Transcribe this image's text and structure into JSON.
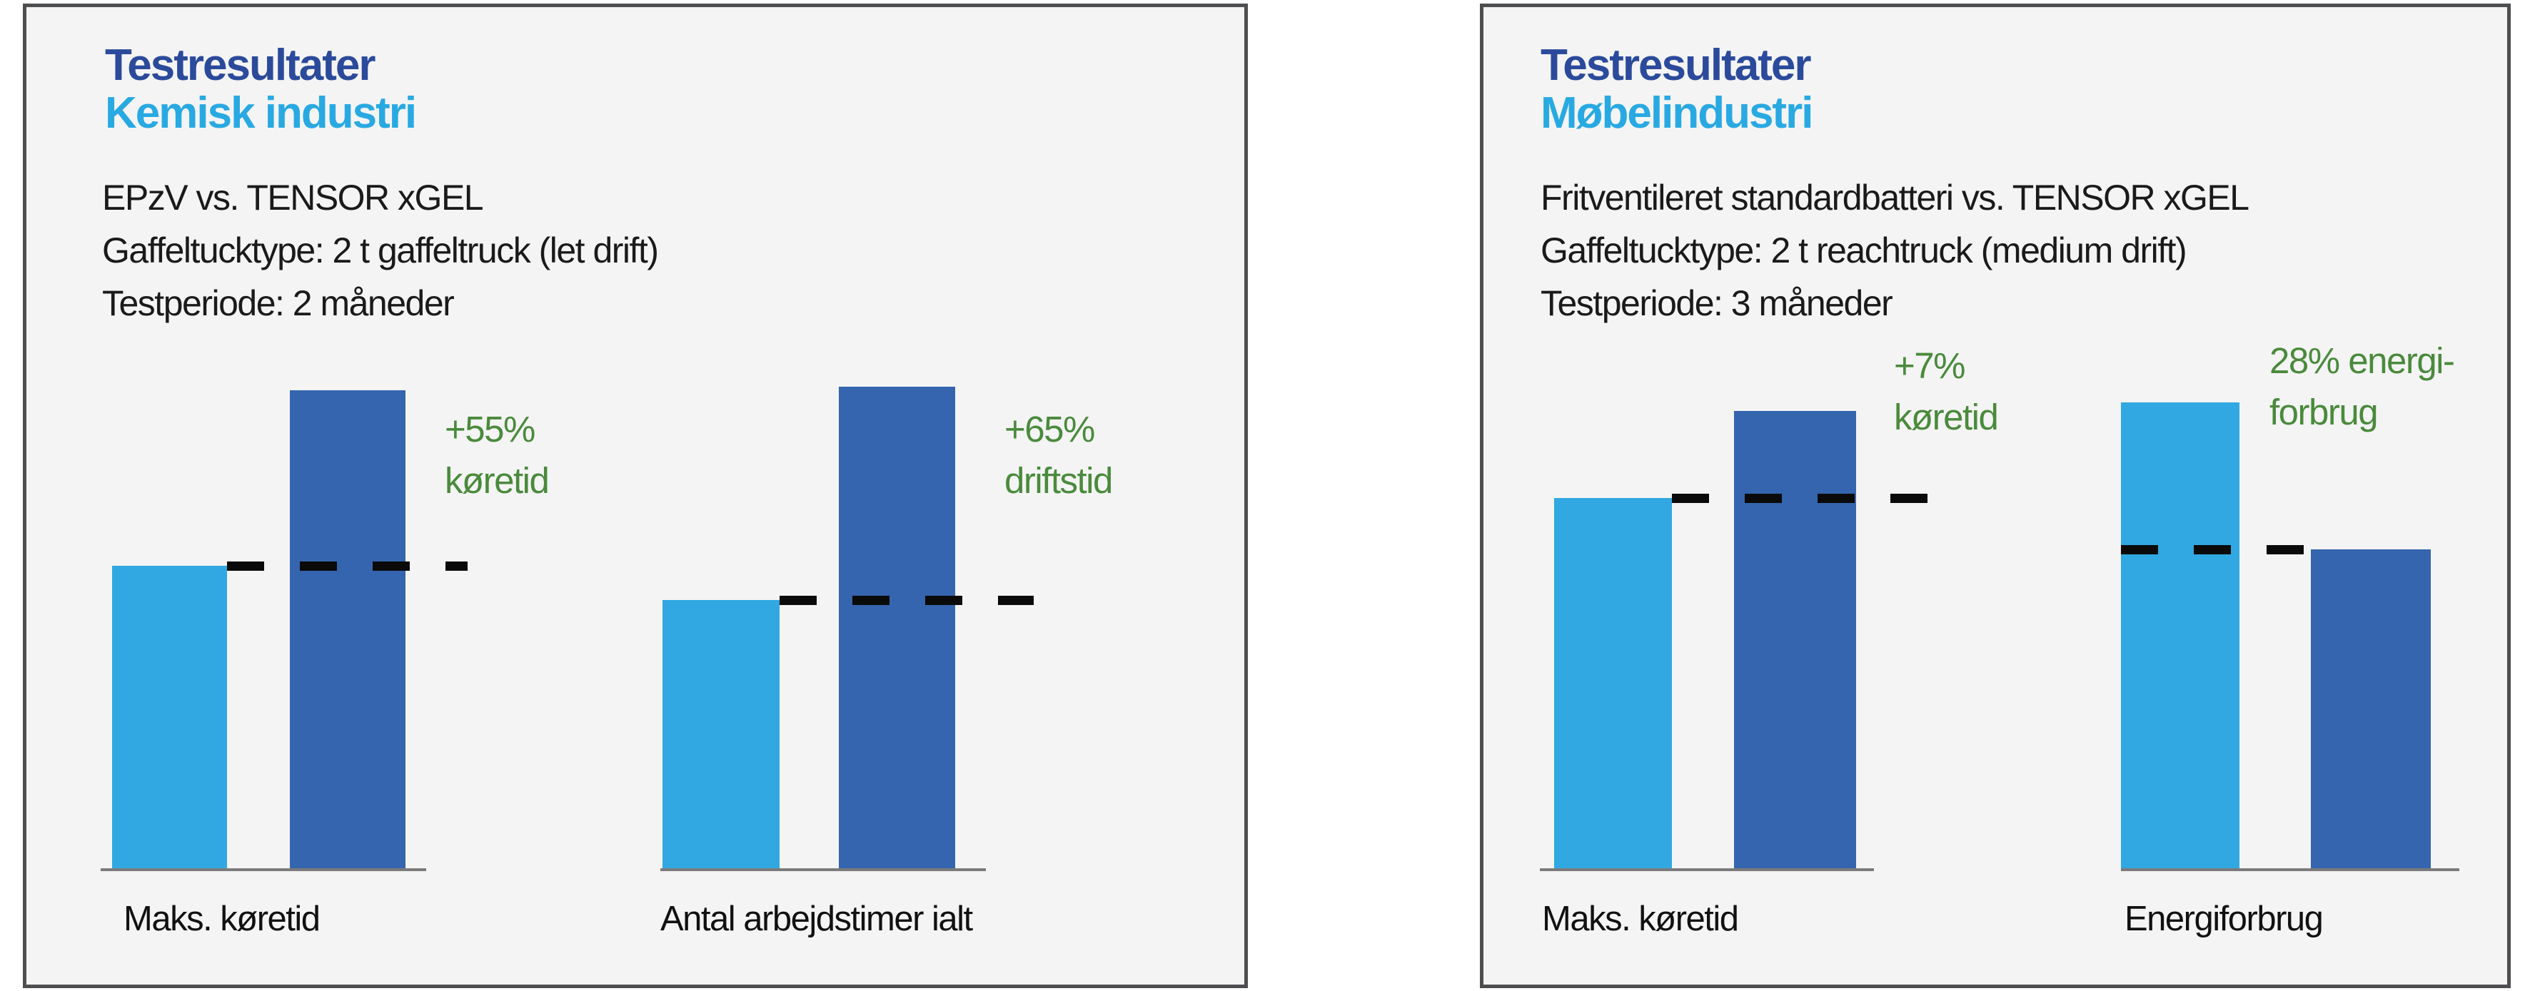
{
  "colors": {
    "page_bg": "#FFFFFF",
    "panel_bg": "#F4F4F4",
    "panel_border": "#4D4E50",
    "title_blue": "#2B4A9B",
    "subtitle_blue": "#29A9E2",
    "body_text": "#1A1A1A",
    "bar_light_blue": "#31A8E1",
    "bar_dark_blue": "#3565AE",
    "annotation_green": "#4A8A3C",
    "baseline_gray": "#7B7B7B",
    "dash_black": "#0A0A0A"
  },
  "panels": [
    {
      "id": "left",
      "name": "kemisk-industri",
      "title": "Testresultater",
      "subtitle": "Kemisk industri",
      "description_lines": [
        "EPzV vs. TENSOR xGEL",
        "Gaffeltucktype: 2 t gaffeltruck (let drift)",
        "Testperiode: 2 måneder"
      ]
    },
    {
      "id": "right",
      "name": "moebelindustri",
      "title": "Testresultater",
      "subtitle": "Møbelindustri",
      "description_lines": [
        "Fritventileret standardbatteri vs. TENSOR xGEL",
        "Gaffeltucktype: 2 t reachtruck (medium drift)",
        "Testperiode: 3 måneder"
      ]
    }
  ],
  "chart_data": [
    {
      "type": "bar",
      "panel": "left",
      "title": "Testresultater – Kemisk industri",
      "series": [
        {
          "name": "EPzV",
          "color_role": "light"
        },
        {
          "name": "TENSOR xGEL",
          "color_role": "dark"
        }
      ],
      "value_unit": "relative bar height in px (no numeric axis shown)",
      "grid": false,
      "legend": "none",
      "baseline_y": 1207,
      "label_top": 1250,
      "groups": [
        {
          "category": "Maks. køretid",
          "values": [
            424,
            670
          ],
          "delta_lines": [
            "+55%",
            "køretid"
          ],
          "dash_series": 0,
          "layout": {
            "bars_left": [
              120,
              369
            ],
            "bars_width": [
              161,
              162
            ],
            "dash_left": 281,
            "dash_width": 337,
            "baseline_left": 104,
            "baseline_width": 456,
            "label_left": 136,
            "annotation_left": 586,
            "annotation_top": 556
          }
        },
        {
          "category": "Antal arbejdstimer ialt",
          "values": [
            376,
            675
          ],
          "delta_lines": [
            "+65%",
            "driftstid"
          ],
          "dash_series": 0,
          "layout": {
            "bars_left": [
              891,
              1138
            ],
            "bars_width": [
              164,
              163
            ],
            "dash_left": 1055,
            "dash_width": 356,
            "baseline_left": 888,
            "baseline_width": 456,
            "label_left": 888,
            "annotation_left": 1370,
            "annotation_top": 556
          }
        }
      ]
    },
    {
      "type": "bar",
      "panel": "right",
      "title": "Testresultater – Møbelindustri",
      "series": [
        {
          "name": "Fritventileret standardbatteri",
          "color_role": "light"
        },
        {
          "name": "TENSOR xGEL",
          "color_role": "dark"
        }
      ],
      "value_unit": "relative bar height in px (no numeric axis shown)",
      "grid": false,
      "legend": "none",
      "baseline_y": 1207,
      "label_top": 1250,
      "groups": [
        {
          "category": "Maks. køretid",
          "values": [
            519,
            641
          ],
          "delta_lines": [
            "+7%",
            "køretid"
          ],
          "dash_series": 0,
          "layout": {
            "bars_left": [
              99,
              351
            ],
            "bars_width": [
              165,
              171
            ],
            "dash_left": 264,
            "dash_width": 360,
            "baseline_left": 79,
            "baseline_width": 468,
            "label_left": 82,
            "annotation_left": 575,
            "annotation_top": 467
          }
        },
        {
          "category": "Energiforbrug",
          "values": [
            653,
            447
          ],
          "delta_lines": [
            "28% energi-",
            "forbrug"
          ],
          "dash_series": 1,
          "layout": {
            "bars_left": [
              893,
              1159
            ],
            "bars_width": [
              166,
              168
            ],
            "dash_left": 893,
            "dash_width": 257,
            "baseline_left": 893,
            "baseline_width": 474,
            "label_left": 898,
            "annotation_left": 1101,
            "annotation_top": 460
          }
        }
      ]
    }
  ]
}
